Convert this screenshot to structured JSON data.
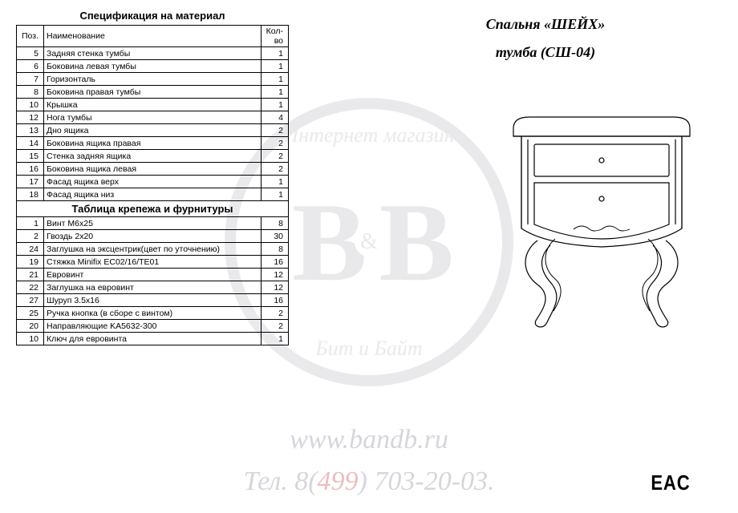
{
  "watermark": {
    "arc_top": "Интернет магазин",
    "arc_bot": "Бит и Байт",
    "bb": "B B",
    "amp": "&",
    "url": "www.bandb.ru",
    "tel_prefix": "Тел. 8(",
    "tel_red": "499",
    "tel_suffix": ") 703-20-03."
  },
  "titles": {
    "product_line1": "Спальня «ШЕЙХ»",
    "product_line2": "тумба (СШ-04)",
    "spec": "Спецификация на материал",
    "hardware": "Таблица крепежа и фурнитуры",
    "eac": "EAC"
  },
  "spec_table": {
    "headers": {
      "pos": "Поз.",
      "name": "Наименование",
      "qty": "Кол-во"
    },
    "rows": [
      {
        "pos": "5",
        "name": "Задняя стенка тумбы",
        "qty": "1"
      },
      {
        "pos": "6",
        "name": "Боковина левая тумбы",
        "qty": "1"
      },
      {
        "pos": "7",
        "name": "Горизонталь",
        "qty": "1"
      },
      {
        "pos": "8",
        "name": "Боковина правая тумбы",
        "qty": "1"
      },
      {
        "pos": "10",
        "name": "Крышка",
        "qty": "1"
      },
      {
        "pos": "12",
        "name": "Нога тумбы",
        "qty": "4"
      },
      {
        "pos": "13",
        "name": "Дно ящика",
        "qty": "2"
      },
      {
        "pos": "14",
        "name": "Боковина ящика правая",
        "qty": "2"
      },
      {
        "pos": "15",
        "name": "Стенка задняя ящика",
        "qty": "2"
      },
      {
        "pos": "16",
        "name": "Боковина ящика левая",
        "qty": "2"
      },
      {
        "pos": "17",
        "name": "Фасад ящика верх",
        "qty": "1"
      },
      {
        "pos": "18",
        "name": "Фасад ящика низ",
        "qty": "1"
      }
    ]
  },
  "hardware_table": {
    "rows": [
      {
        "pos": "1",
        "name": "Винт М6х25",
        "qty": "8"
      },
      {
        "pos": "2",
        "name": "Гвоздь 2х20",
        "qty": "30"
      },
      {
        "pos": "24",
        "name": "Заглушка на эксцентрик(цвет по уточнению)",
        "qty": "8"
      },
      {
        "pos": "19",
        "name": "Стяжка Minifix EC02/16/TE01",
        "qty": "16"
      },
      {
        "pos": "21",
        "name": "Евровинт",
        "qty": "12"
      },
      {
        "pos": "22",
        "name": "Заглушка на евровинт",
        "qty": "12"
      },
      {
        "pos": "27",
        "name": "Шуруп 3.5х16",
        "qty": "16"
      },
      {
        "pos": "25",
        "name": "Ручка кнопка (в сборе с винтом)",
        "qty": "2"
      },
      {
        "pos": "20",
        "name": "Направляющие KA5632-300",
        "qty": "2"
      },
      {
        "pos": "10",
        "name": "Ключ для евровинта",
        "qty": "1"
      }
    ]
  },
  "drawing": {
    "stroke": "#000000",
    "stroke_width": 1.2
  }
}
